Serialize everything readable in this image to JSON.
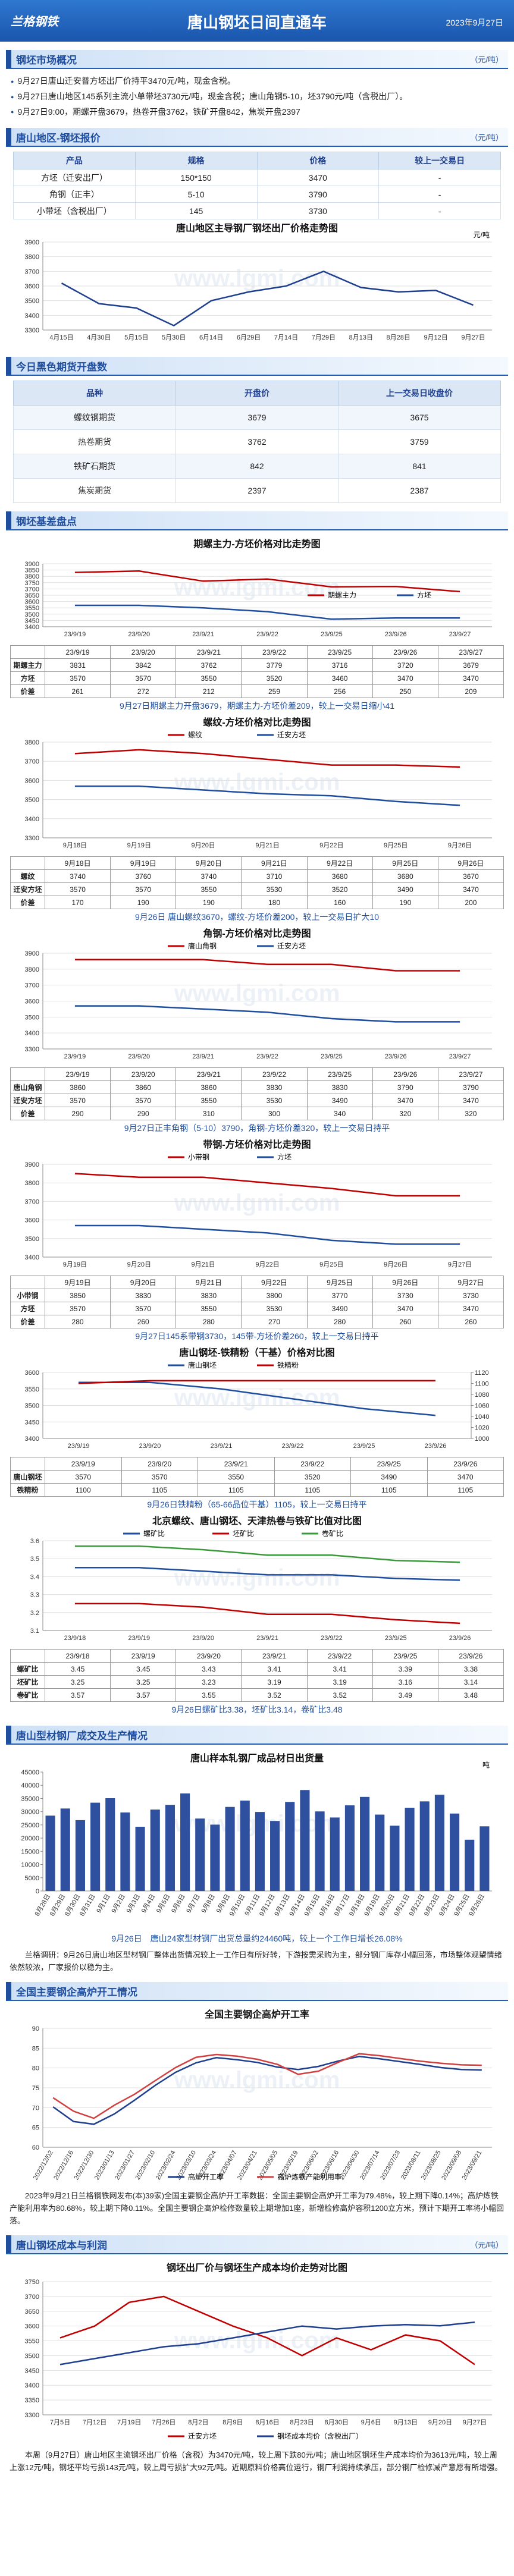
{
  "header": {
    "logo": "兰格钢铁",
    "title": "唐山钢坯日间直通车",
    "date": "2023年9月27日"
  },
  "watermark": "www.lgmi.com",
  "overview": {
    "heading": "钢坯市场概况",
    "unit": "（元/吨）",
    "bullets": [
      "9月27日唐山迁安普方坯出厂价持平3470元/吨，现金含税。",
      "9月27日唐山地区145系列主流小单带坯3730元/吨，现金含税；唐山角钢5-10，坯3790元/吨（含税出厂）。",
      "9月27日9:00，期螺开盘3679，热卷开盘3762，铁矿开盘842，焦炭开盘2397"
    ]
  },
  "quote": {
    "heading": "唐山地区-钢坯报价",
    "unit": "（元/吨）",
    "table": {
      "header": [
        "产品",
        "规格",
        "价格",
        "较上一交易日"
      ],
      "rows": [
        [
          "方坯（迁安出厂）",
          "150*150",
          "3470",
          "-"
        ],
        [
          "角钢（正丰）",
          "5-10",
          "3790",
          "-"
        ],
        [
          "小带坯（含税出厂）",
          "145",
          "3730",
          "-"
        ]
      ]
    }
  },
  "futures": {
    "heading": "今日黑色期货开盘数",
    "table": {
      "header": [
        "品种",
        "开盘价",
        "上一交易日收盘价"
      ],
      "rows": [
        [
          "螺纹钢期货",
          "3679",
          "3675"
        ],
        [
          "热卷期货",
          "3762",
          "3759"
        ],
        [
          "铁矿石期货",
          "842",
          "841"
        ],
        [
          "焦炭期货",
          "2397",
          "2387"
        ]
      ]
    }
  },
  "basis": {
    "heading": "钢坯基差盘点"
  },
  "section_profile": {
    "heading": "唐山型材钢厂成交及生产情况"
  },
  "profile_text": "兰格调研：9月26日唐山地区型材钢厂整体出货情况较上一工作日有所好转，下游按需采购为主，部分钢厂库存小幅回落，市场整体观望情绪依然较浓，厂家报价以稳为主。",
  "section_furnace": {
    "heading": "全国主要钢企高炉开工情况"
  },
  "furnace_text": "2023年9月21日兰格钢铁网发布(本)39家)全国主要钢企高炉开工率数据：全国主要钢企高炉开工率为79.48%，较上期下降0.14%；高炉炼铁产能利用率为80.68%，较上期下降0.11%。全国主要钢企高炉检修数量较上期增加1座，新增检修高炉容积1200立方米，预计下期开工率将小幅回落。",
  "section_cost": {
    "heading": "唐山钢坯成本与利润",
    "unit": "（元/吨）"
  },
  "cost_text": "本周（9月27日）唐山地区主流钢坯出厂价格（含税）为3470元/吨，较上周下跌80元/吨；唐山地区钢坯生产成本均价为3613元/吨，较上周上涨12元/吨，钢坯平均亏损143元/吨，较上周亏损扩大92元/吨。近期原料价格高位运行，钢厂利润持续承压，部分钢厂检修减产意愿有所增强。",
  "chart_data": [
    {
      "type": "line",
      "title": "唐山地区主导钢厂钢坯出厂价格走势图",
      "unit": "元/吨",
      "categories": [
        "4月15日",
        "4月30日",
        "5月15日",
        "5月30日",
        "6月14日",
        "6月29日",
        "7月14日",
        "7月29日",
        "8月13日",
        "8月28日",
        "9月12日",
        "9月27日"
      ],
      "series": [
        {
          "color": "#1f3f8f",
          "values": [
            3620,
            3480,
            3450,
            3330,
            3500,
            3560,
            3600,
            3700,
            3590,
            3560,
            3570,
            3470
          ]
        }
      ],
      "ylim": [
        3300,
        3900
      ],
      "yticks": [
        3300,
        3400,
        3500,
        3600,
        3700,
        3800,
        3900
      ],
      "grid": true
    },
    {
      "type": "line",
      "title": "期螺主力-方坯价格对比走势图",
      "legend": "right",
      "categories": [
        "23/9/19",
        "23/9/20",
        "23/9/21",
        "23/9/22",
        "23/9/25",
        "23/9/26",
        "23/9/27"
      ],
      "series": [
        {
          "name": "期螺主力",
          "color": "#c00000",
          "values": [
            3831,
            3842,
            3762,
            3779,
            3716,
            3720,
            3679
          ]
        },
        {
          "name": "方坯",
          "color": "#1f4e9e",
          "values": [
            3570,
            3570,
            3550,
            3520,
            3460,
            3470,
            3470
          ]
        }
      ],
      "spread": {
        "name": "价差",
        "values": [
          261,
          272,
          212,
          259,
          256,
          250,
          209
        ]
      },
      "ylim": [
        3400,
        3900
      ],
      "yticks": [
        3400,
        3450,
        3500,
        3550,
        3600,
        3650,
        3700,
        3750,
        3800,
        3850,
        3900
      ],
      "grid": true,
      "caption": "9月27日期螺主力开盘3679，期螺主力-方坯价差209，较上一交易日缩小41"
    },
    {
      "type": "line",
      "title": "螺纹-方坯价格对比走势图",
      "legend": "top",
      "categories": [
        "9月18日",
        "9月19日",
        "9月20日",
        "9月21日",
        "9月22日",
        "9月25日",
        "9月26日"
      ],
      "series": [
        {
          "name": "螺纹",
          "color": "#c00000",
          "values": [
            3740,
            3760,
            3740,
            3710,
            3680,
            3680,
            3670
          ]
        },
        {
          "name": "迁安方坯",
          "color": "#1f4e9e",
          "values": [
            3570,
            3570,
            3550,
            3530,
            3520,
            3490,
            3470
          ]
        }
      ],
      "spread": {
        "name": "价差",
        "values": [
          170,
          190,
          190,
          180,
          160,
          190,
          200
        ]
      },
      "ylim": [
        3300,
        3800
      ],
      "yticks": [
        3300,
        3400,
        3500,
        3600,
        3700,
        3800
      ],
      "grid": true,
      "caption": "9月26日 唐山螺纹3670，螺纹-方坯价差200，较上一交易日扩大10"
    },
    {
      "type": "line",
      "title": "角钢-方坯价格对比走势图",
      "legend": "top",
      "categories": [
        "23/9/19",
        "23/9/20",
        "23/9/21",
        "23/9/22",
        "23/9/25",
        "23/9/26",
        "23/9/27"
      ],
      "series": [
        {
          "name": "唐山角钢",
          "color": "#c00000",
          "values": [
            3860,
            3860,
            3860,
            3830,
            3830,
            3790,
            3790
          ]
        },
        {
          "name": "迁安方坯",
          "color": "#1f4e9e",
          "values": [
            3570,
            3570,
            3550,
            3530,
            3490,
            3470,
            3470
          ]
        }
      ],
      "spread": {
        "name": "价差",
        "values": [
          290,
          290,
          310,
          300,
          340,
          320,
          320
        ]
      },
      "ylim": [
        3300,
        3900
      ],
      "yticks": [
        3300,
        3400,
        3500,
        3600,
        3700,
        3800,
        3900
      ],
      "grid": true,
      "caption": "9月27日正丰角钢（5-10）3790，角钢-方坯价差320，较上一交易日持平"
    },
    {
      "type": "line",
      "title": "带钢-方坯价格对比走势图",
      "legend": "top",
      "categories": [
        "9月19日",
        "9月20日",
        "9月21日",
        "9月22日",
        "9月25日",
        "9月26日",
        "9月27日"
      ],
      "series": [
        {
          "name": "小带钢",
          "color": "#c00000",
          "values": [
            3850,
            3830,
            3830,
            3800,
            3770,
            3730,
            3730
          ]
        },
        {
          "name": "方坯",
          "color": "#1f4e9e",
          "values": [
            3570,
            3570,
            3550,
            3530,
            3490,
            3470,
            3470
          ]
        }
      ],
      "spread": {
        "name": "价差",
        "values": [
          280,
          260,
          280,
          270,
          280,
          260,
          260
        ]
      },
      "ylim": [
        3400,
        3900
      ],
      "yticks": [
        3400,
        3500,
        3600,
        3700,
        3800,
        3900
      ],
      "grid": true,
      "caption": "9月27日145系带钢3730，145带-方坯价差260，较上一交易日持平"
    },
    {
      "type": "line",
      "title": "唐山钢坯-铁精粉（干基）价格对比图",
      "legend": "top",
      "categories": [
        "23/9/19",
        "23/9/20",
        "23/9/21",
        "23/9/22",
        "23/9/25",
        "23/9/26"
      ],
      "series": [
        {
          "name": "唐山钢坯",
          "color": "#1f4e9e",
          "values": [
            3570,
            3570,
            3550,
            3520,
            3490,
            3470
          ]
        },
        {
          "name": "铁精粉",
          "color": "#c00000",
          "axis": "y2",
          "values": [
            1100,
            1105,
            1105,
            1105,
            1105,
            1105
          ]
        }
      ],
      "ylim": [
        3400,
        3600
      ],
      "yticks": [
        3400,
        3450,
        3500,
        3550,
        3600
      ],
      "y2lim": [
        1000,
        1120
      ],
      "y2ticks": [
        1000,
        1020,
        1040,
        1060,
        1080,
        1100,
        1120
      ],
      "grid": true,
      "caption": "9月26日铁精粉（65-66品位干基）1105，较上一交易日持平"
    },
    {
      "type": "line",
      "title": "北京螺纹、唐山钢坯、天津热卷与铁矿比值对比图",
      "legend": "top",
      "categories": [
        "23/9/18",
        "23/9/19",
        "23/9/20",
        "23/9/21",
        "23/9/22",
        "23/9/25",
        "23/9/26"
      ],
      "series": [
        {
          "name": "螺矿比",
          "color": "#1f4e9e",
          "values": [
            3.45,
            3.45,
            3.43,
            3.41,
            3.41,
            3.39,
            3.38
          ]
        },
        {
          "name": "坯矿比",
          "color": "#c00000",
          "values": [
            3.25,
            3.25,
            3.23,
            3.19,
            3.19,
            3.16,
            3.14
          ]
        },
        {
          "name": "卷矿比",
          "color": "#3a9a3a",
          "values": [
            3.57,
            3.57,
            3.55,
            3.52,
            3.52,
            3.49,
            3.48
          ]
        }
      ],
      "ylim": [
        3.1,
        3.6
      ],
      "yticks": [
        3.1,
        3.2,
        3.3,
        3.4,
        3.5,
        3.6
      ],
      "grid": true,
      "caption": "9月26日螺矿比3.38，坯矿比3.14，卷矿比3.48"
    },
    {
      "type": "bar",
      "title": "唐山样本轧钢厂成品材日出货量",
      "unit": "吨",
      "color": "#2f4f9f",
      "categories": [
        "8月28日",
        "8月29日",
        "8月30日",
        "8月31日",
        "9月1日",
        "9月2日",
        "9月3日",
        "9月4日",
        "9月5日",
        "9月6日",
        "9月7日",
        "9月8日",
        "9月9日",
        "9月10日",
        "9月11日",
        "9月12日",
        "9月13日",
        "9月14日",
        "9月15日",
        "9月16日",
        "9月17日",
        "9月18日",
        "9月19日",
        "9月20日",
        "9月21日",
        "9月22日",
        "9月23日",
        "9月24日",
        "9月25日",
        "9月26日"
      ],
      "values": [
        28500,
        31200,
        26800,
        33400,
        35100,
        29700,
        24300,
        30800,
        32600,
        36900,
        27400,
        25100,
        31800,
        34200,
        29900,
        26500,
        33700,
        38200,
        30100,
        27800,
        32400,
        35600,
        28900,
        24700,
        31500,
        33900,
        36400,
        29300,
        19400,
        24460
      ],
      "ylim": [
        0,
        45000
      ],
      "yticks": [
        0,
        5000,
        10000,
        15000,
        20000,
        25000,
        30000,
        35000,
        40000,
        45000
      ],
      "grid": false,
      "caption": "9月26日　唐山24家型材钢厂出货总量约24460吨，较上一个工作日增长26.08%"
    },
    {
      "type": "line",
      "title": "全国主要钢企高炉开工率",
      "legend": "bottom",
      "categories": [
        "2022/12/02",
        "2022/12/16",
        "2022/12/30",
        "2023/01/13",
        "2023/01/27",
        "2023/02/10",
        "2023/02/24",
        "2023/03/10",
        "2023/03/24",
        "2023/04/07",
        "2023/04/21",
        "2023/05/05",
        "2023/05/19",
        "2023/06/02",
        "2023/06/16",
        "2023/06/30",
        "2023/07/14",
        "2023/07/28",
        "2023/08/11",
        "2023/08/25",
        "2023/09/08",
        "2023/09/21"
      ],
      "series": [
        {
          "name": "高炉开工率",
          "color": "#1f3f8f",
          "values": [
            70.2,
            66.5,
            65.8,
            68.4,
            71.9,
            75.6,
            78.9,
            81.3,
            82.6,
            82.1,
            81.4,
            80.2,
            79.6,
            80.4,
            81.8,
            82.9,
            82.3,
            81.6,
            80.9,
            80.1,
            79.62,
            79.48
          ]
        },
        {
          "name": "高炉炼铁产能利用率",
          "color": "#d04040",
          "values": [
            72.5,
            69.1,
            67.3,
            70.6,
            73.4,
            76.8,
            80.1,
            82.7,
            83.4,
            83.0,
            82.2,
            80.9,
            78.4,
            79.2,
            81.5,
            83.6,
            83.1,
            82.4,
            81.7,
            81.2,
            80.79,
            80.68
          ]
        }
      ],
      "ylim": [
        60,
        90
      ],
      "yticks": [
        60,
        65,
        70,
        75,
        80,
        85,
        90
      ],
      "grid": true
    },
    {
      "type": "line",
      "title": "钢坯出厂价与钢坯生产成本均价走势对比图",
      "legend": "bottom",
      "categories": [
        "7月5日",
        "7月12日",
        "7月19日",
        "7月26日",
        "8月2日",
        "8月9日",
        "8月16日",
        "8月23日",
        "8月30日",
        "9月6日",
        "9月13日",
        "9月20日",
        "9月27日"
      ],
      "series": [
        {
          "name": "迁安方坯",
          "color": "#c00000",
          "values": [
            3560,
            3600,
            3680,
            3700,
            3650,
            3600,
            3560,
            3500,
            3560,
            3520,
            3570,
            3550,
            3470
          ]
        },
        {
          "name": "钢坯成本均价（含税出厂）",
          "color": "#1f3f8f",
          "values": [
            3470,
            3490,
            3510,
            3530,
            3540,
            3560,
            3580,
            3600,
            3590,
            3600,
            3605,
            3601,
            3613
          ]
        }
      ],
      "ylim": [
        3300,
        3750
      ],
      "yticks": [
        3300,
        3350,
        3400,
        3450,
        3500,
        3550,
        3600,
        3650,
        3700,
        3750
      ],
      "grid": true
    }
  ]
}
